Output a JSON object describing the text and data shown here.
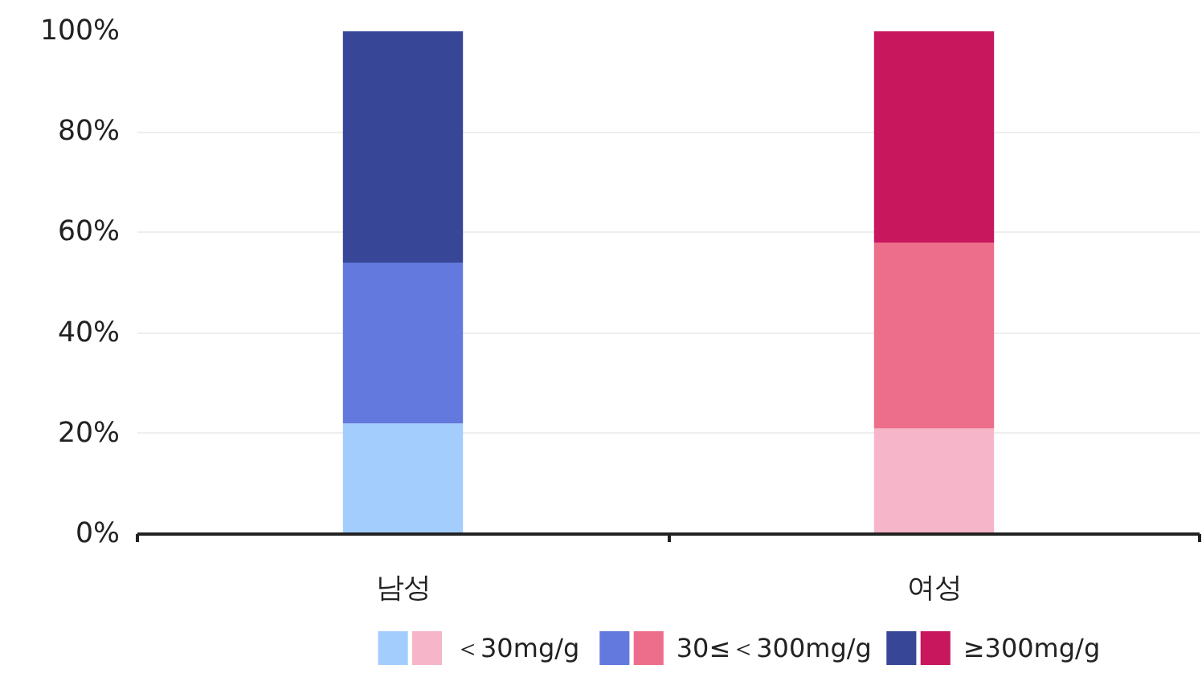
{
  "chart_data": {
    "type": "bar",
    "stacked": true,
    "categories": [
      "남성",
      "여성"
    ],
    "series": [
      {
        "name": "＜30mg/g",
        "colors": [
          "#a3cdfd",
          "#f6b5c8"
        ],
        "values": [
          22,
          21
        ]
      },
      {
        "name": "30≤＜300mg/g",
        "colors": [
          "#6379dd",
          "#ed6e8a"
        ],
        "values": [
          32,
          37
        ]
      },
      {
        "name": "≥300mg/g",
        "colors": [
          "#374696",
          "#c8175d"
        ],
        "values": [
          46,
          42
        ]
      }
    ],
    "ylim": [
      0,
      100
    ],
    "yticks": [
      {
        "value": 0,
        "label": "0%"
      },
      {
        "value": 20,
        "label": "20%"
      },
      {
        "value": 40,
        "label": "40%"
      },
      {
        "value": 60,
        "label": "60%"
      },
      {
        "value": 80,
        "label": "80%"
      },
      {
        "value": 100,
        "label": "100%"
      }
    ],
    "grid": "y",
    "legend": "bottom"
  }
}
